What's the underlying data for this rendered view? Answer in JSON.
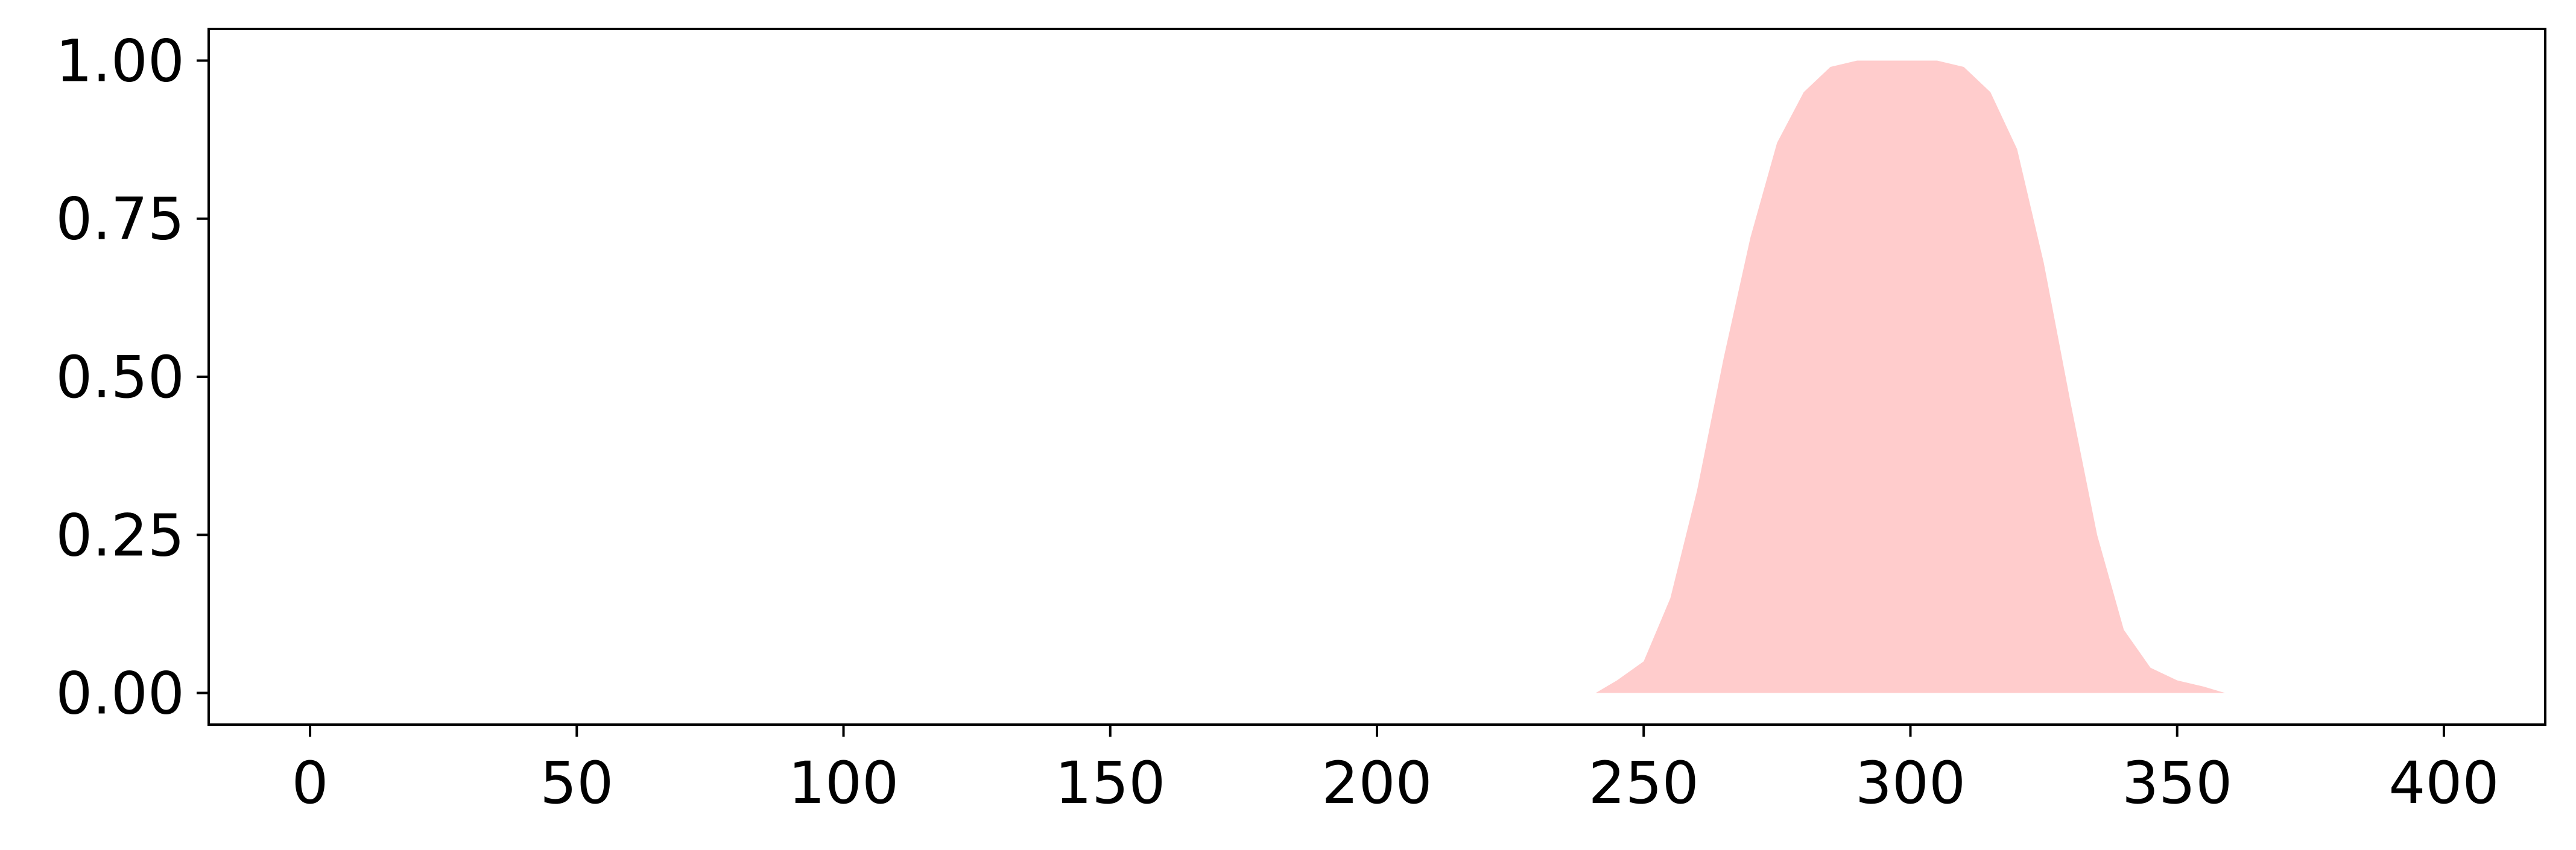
{
  "chart_data": {
    "type": "area",
    "title": "",
    "xlabel": "",
    "ylabel": "",
    "xlim": [
      -19,
      419
    ],
    "ylim": [
      -0.05,
      1.05
    ],
    "grid": false,
    "x_ticks": [
      0,
      50,
      100,
      150,
      200,
      250,
      300,
      350,
      400
    ],
    "x_tick_labels": [
      "0",
      "50",
      "100",
      "150",
      "200",
      "250",
      "300",
      "350",
      "400"
    ],
    "y_ticks": [
      0,
      0.25,
      0.5,
      0.75,
      1.0
    ],
    "y_tick_labels": [
      "0.00",
      "0.25",
      "0.50",
      "0.75",
      "1.00"
    ],
    "series": [
      {
        "color": "#ffcccc",
        "x": [
          241,
          245,
          250,
          255,
          260,
          265,
          270,
          275,
          280,
          285,
          290,
          295,
          300,
          305,
          310,
          315,
          320,
          325,
          330,
          335,
          340,
          345,
          350,
          355,
          359
        ],
        "y": [
          0.0,
          0.02,
          0.05,
          0.15,
          0.32,
          0.53,
          0.72,
          0.87,
          0.95,
          0.99,
          1.0,
          1.0,
          1.0,
          1.0,
          0.99,
          0.95,
          0.86,
          0.68,
          0.46,
          0.25,
          0.1,
          0.04,
          0.02,
          0.01,
          0.0
        ]
      }
    ]
  }
}
